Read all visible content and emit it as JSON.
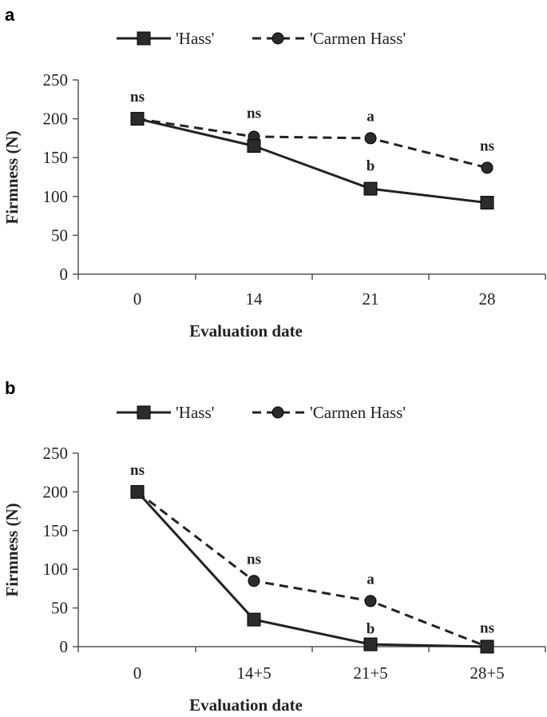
{
  "chart_data": [
    {
      "type": "line",
      "panel_label": "a",
      "categories": [
        "0",
        "14",
        "21",
        "28"
      ],
      "series": [
        {
          "name": "'Hass'",
          "values": [
            200,
            165,
            110,
            92
          ],
          "line": "solid",
          "marker": "square"
        },
        {
          "name": "'Carmen Hass'",
          "values": [
            200,
            177,
            175,
            137
          ],
          "line": "dashed",
          "marker": "circle"
        }
      ],
      "annotations": [
        {
          "text": "ns",
          "category_index": 0,
          "y": 222
        },
        {
          "text": "ns",
          "category_index": 1,
          "y": 201
        },
        {
          "text": "a",
          "category_index": 2,
          "y": 197
        },
        {
          "text": "b",
          "category_index": 2,
          "y": 133
        },
        {
          "text": "ns",
          "category_index": 3,
          "y": 159
        }
      ],
      "xlabel": "Evaluation date",
      "ylabel": "Firmness (N)",
      "ylim": [
        0,
        250
      ],
      "yticks": [
        "0",
        "50",
        "100",
        "150",
        "200",
        "250"
      ],
      "legend": "top",
      "grid": false
    },
    {
      "type": "line",
      "panel_label": "b",
      "categories": [
        "0",
        "14+5",
        "21+5",
        "28+5"
      ],
      "series": [
        {
          "name": "'Hass'",
          "values": [
            200,
            35,
            3,
            0
          ],
          "line": "solid",
          "marker": "square"
        },
        {
          "name": "'Carmen Hass'",
          "values": [
            200,
            85,
            59,
            0
          ],
          "line": "dashed",
          "marker": "circle"
        }
      ],
      "annotations": [
        {
          "text": "ns",
          "category_index": 0,
          "y": 222
        },
        {
          "text": "ns",
          "category_index": 1,
          "y": 107
        },
        {
          "text": "a",
          "category_index": 2,
          "y": 81
        },
        {
          "text": "b",
          "category_index": 2,
          "y": 17
        },
        {
          "text": "ns",
          "category_index": 3,
          "y": 18
        }
      ],
      "xlabel": "Evaluation date",
      "ylabel": "Firmness (N)",
      "ylim": [
        0,
        250
      ],
      "yticks": [
        "0",
        "50",
        "100",
        "150",
        "200",
        "250"
      ],
      "legend": "top",
      "grid": false
    }
  ],
  "colors": {
    "axis": "#555555",
    "line": "#222222",
    "marker_fill": "#2b2b2b",
    "marker_stroke": "#000000"
  }
}
